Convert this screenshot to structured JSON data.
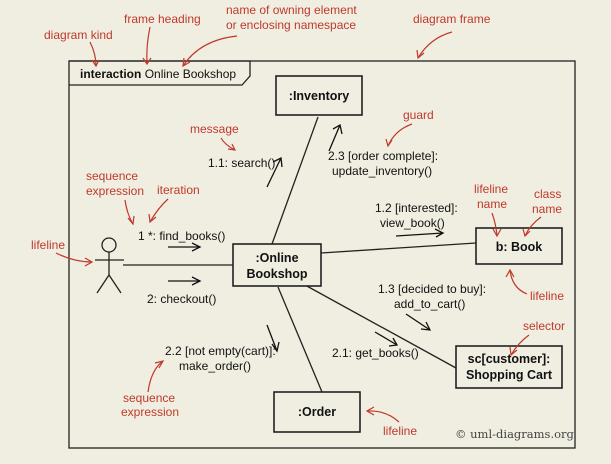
{
  "frame": {
    "kind": "interaction",
    "name": "Online Bookshop"
  },
  "lifelines": {
    "inventory": ":Inventory",
    "bookshop_line1": ":Online",
    "bookshop_line2": "Bookshop",
    "book": "b: Book",
    "cart_line1": "sc[customer]:",
    "cart_line2": "Shopping Cart",
    "order": ":Order"
  },
  "messages": {
    "m11": "1.1: search()",
    "m23a": "2.3 [order complete]:",
    "m23b": "update_inventory()",
    "m1": "1 *: find_books()",
    "m12a": "1.2 [interested]:",
    "m12b": "view_book()",
    "m2": "2: checkout()",
    "m13a": "1.3 [decided to buy]:",
    "m13b": "add_to_cart()",
    "m22a": "2.2 [not empty(cart)]:",
    "m22b": "make_order()",
    "m21": "2.1: get_books()"
  },
  "annotations": {
    "diagram_kind": "diagram kind",
    "frame_heading": "frame heading",
    "owning_line1": "name of owning element",
    "owning_line2": "or enclosing namespace",
    "diagram_frame": "diagram frame",
    "message": "message",
    "guard": "guard",
    "seq_expr_line1": "sequence",
    "seq_expr_line2": "expression",
    "iteration": "iteration",
    "lifeline_left": "lifeline",
    "lifeline_name_line1": "lifeline",
    "lifeline_name_line2": "name",
    "class_name_line1": "class",
    "class_name_line2": "name",
    "lifeline_right": "lifeline",
    "selector": "selector",
    "seq_expr2_line1": "sequence",
    "seq_expr2_line2": "expression",
    "lifeline_bottom": "lifeline"
  },
  "watermark": "© uml-diagrams.org",
  "colors": {
    "background": "#efeee1",
    "annotation": "#c0392b",
    "ink": "#222222"
  }
}
